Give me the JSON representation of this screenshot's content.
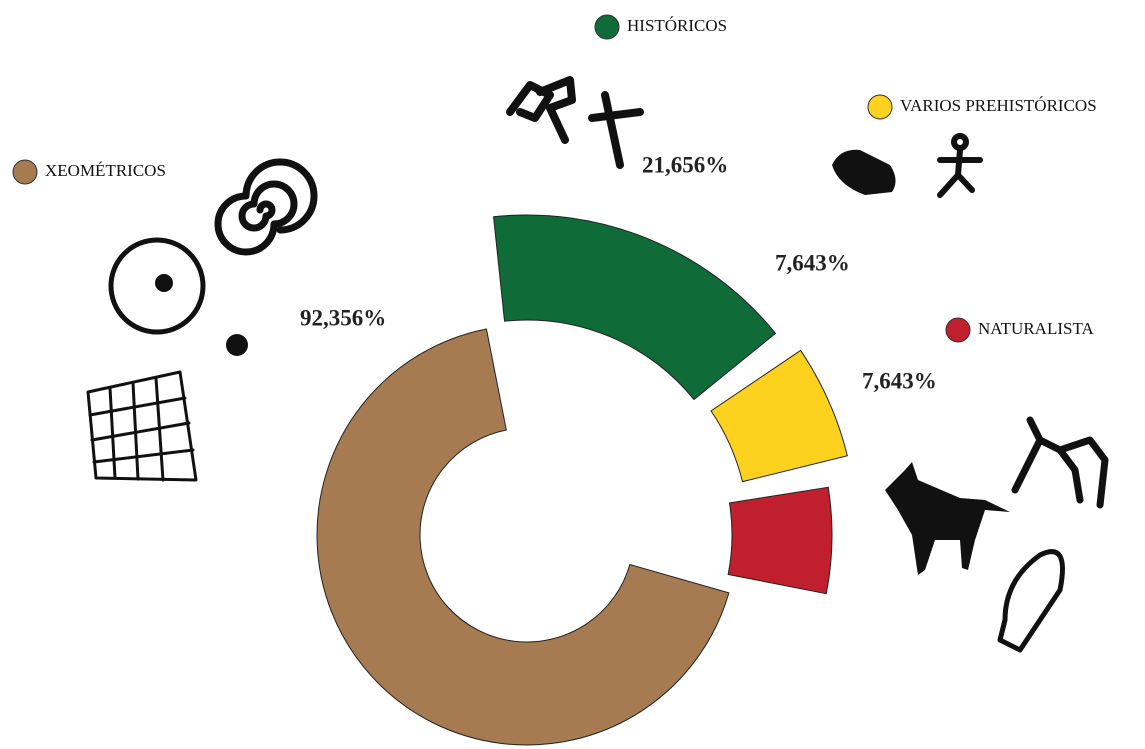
{
  "chart_data": {
    "type": "donut",
    "categories": [
      "XEOMÉTRICOS",
      "HISTÓRICOS",
      "VARIOS PREHISTÓRICOS",
      "NATURALISTA"
    ],
    "values": [
      92.356,
      21.656,
      7.643,
      7.643
    ],
    "value_labels": [
      "92,356%",
      "21,656%",
      "7,643%",
      "7,643%"
    ],
    "colors": [
      "#a67b51",
      "#0f6b38",
      "#fcd21f",
      "#c0202e"
    ]
  }
}
